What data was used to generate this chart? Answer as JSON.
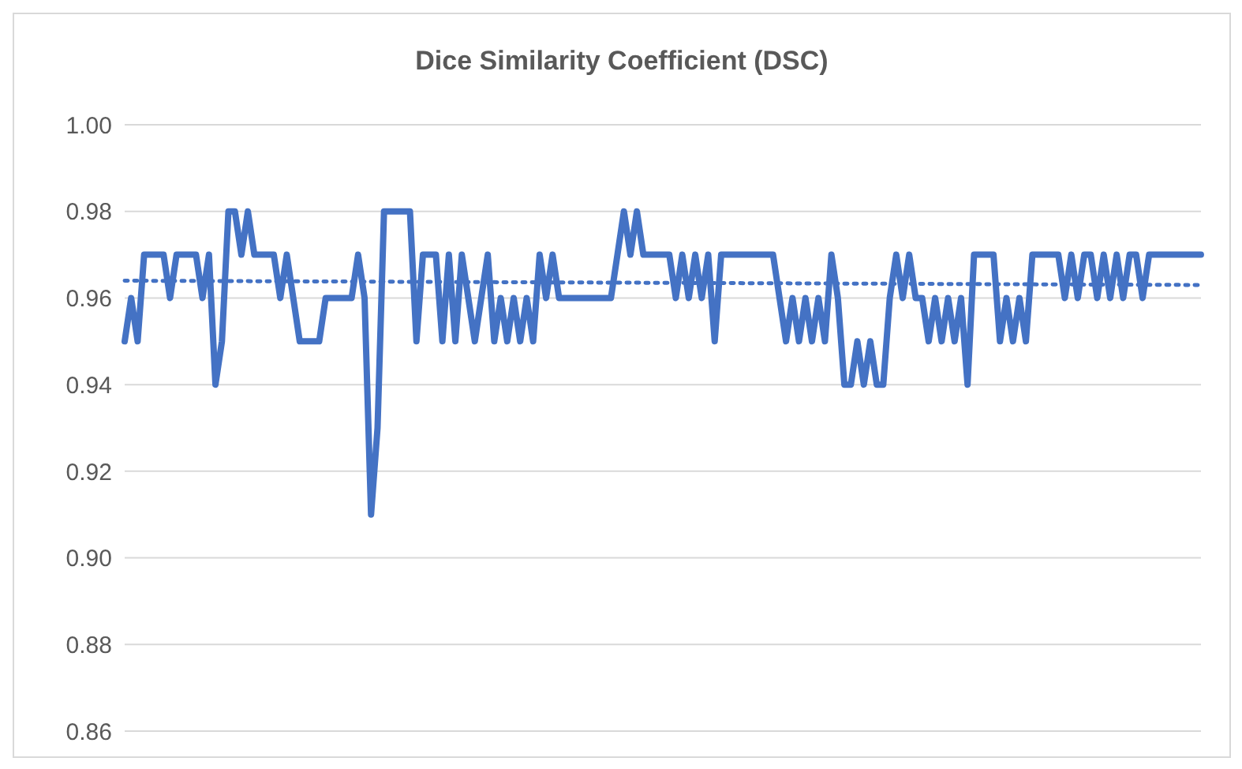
{
  "chart_data": {
    "type": "line",
    "title": "Dice Similarity Coefficient (DSC)",
    "categories": [
      null,
      null,
      null,
      null,
      null,
      null,
      null,
      null,
      null,
      null,
      null,
      null,
      null,
      null,
      null,
      null,
      null,
      null,
      null,
      null,
      null,
      null,
      null,
      null,
      null,
      null,
      null,
      null,
      null,
      null,
      null,
      null,
      null,
      null,
      null,
      null,
      null,
      null,
      null,
      null,
      null,
      null,
      null,
      null,
      null,
      null,
      null,
      null,
      null,
      null,
      null,
      null,
      null,
      null,
      null,
      null,
      null,
      null,
      null,
      null,
      null,
      null,
      null,
      null,
      null,
      null,
      null,
      null,
      null,
      null,
      null,
      null,
      null,
      null,
      null,
      null,
      null,
      null,
      null,
      null,
      null,
      null,
      null,
      null,
      null,
      null,
      null,
      null,
      null,
      null,
      null,
      null,
      null,
      null,
      null,
      null,
      null,
      null,
      null,
      null,
      null,
      null,
      null,
      null,
      null,
      null,
      null,
      null,
      null,
      null,
      null,
      null,
      null,
      null,
      null,
      null,
      null,
      null,
      null,
      null,
      null,
      null,
      null,
      null,
      null,
      null,
      null,
      null,
      null,
      null,
      null,
      null,
      null,
      null,
      null,
      null,
      null,
      null,
      null,
      null,
      null,
      null,
      null,
      null,
      null,
      null,
      null,
      null,
      null,
      null,
      null,
      null,
      null,
      null,
      null,
      null,
      null,
      null,
      null,
      null,
      null,
      null,
      null,
      null,
      null,
      null,
      null
    ],
    "series": [
      {
        "color": "#4472c4",
        "values": [
          0.95,
          0.96,
          0.95,
          0.97,
          0.97,
          0.97,
          0.97,
          0.96,
          0.97,
          0.97,
          0.97,
          0.97,
          0.96,
          0.97,
          0.94,
          0.95,
          0.98,
          0.98,
          0.97,
          0.98,
          0.97,
          0.97,
          0.97,
          0.97,
          0.96,
          0.97,
          0.96,
          0.95,
          0.95,
          0.95,
          0.95,
          0.96,
          0.96,
          0.96,
          0.96,
          0.96,
          0.97,
          0.96,
          0.91,
          0.93,
          0.98,
          0.98,
          0.98,
          0.98,
          0.98,
          0.95,
          0.97,
          0.97,
          0.97,
          0.95,
          0.97,
          0.95,
          0.97,
          0.96,
          0.95,
          0.96,
          0.97,
          0.95,
          0.96,
          0.95,
          0.96,
          0.95,
          0.96,
          0.95,
          0.97,
          0.96,
          0.97,
          0.96,
          0.96,
          0.96,
          0.96,
          0.96,
          0.96,
          0.96,
          0.96,
          0.96,
          0.97,
          0.98,
          0.97,
          0.98,
          0.97,
          0.97,
          0.97,
          0.97,
          0.97,
          0.96,
          0.97,
          0.96,
          0.97,
          0.96,
          0.97,
          0.95,
          0.97,
          0.97,
          0.97,
          0.97,
          0.97,
          0.97,
          0.97,
          0.97,
          0.97,
          0.96,
          0.95,
          0.96,
          0.95,
          0.96,
          0.95,
          0.96,
          0.95,
          0.97,
          0.96,
          0.94,
          0.94,
          0.95,
          0.94,
          0.95,
          0.94,
          0.94,
          0.96,
          0.97,
          0.96,
          0.97,
          0.96,
          0.96,
          0.95,
          0.96,
          0.95,
          0.96,
          0.95,
          0.96,
          0.94,
          0.97,
          0.97,
          0.97,
          0.97,
          0.95,
          0.96,
          0.95,
          0.96,
          0.95,
          0.97,
          0.97,
          0.97,
          0.97,
          0.97,
          0.96,
          0.97,
          0.96,
          0.97,
          0.97,
          0.96,
          0.97,
          0.96,
          0.97,
          0.96,
          0.97,
          0.97,
          0.96,
          0.97,
          0.97,
          0.97,
          0.97,
          0.97,
          0.97,
          0.97,
          0.97,
          0.97
        ]
      },
      {
        "color": "#4472c4",
        "line_style": "dotted",
        "values": [
          0.964,
          null,
          null,
          null,
          null,
          null,
          null,
          null,
          null,
          null,
          null,
          null,
          null,
          null,
          null,
          null,
          null,
          null,
          null,
          null,
          null,
          null,
          null,
          null,
          null,
          null,
          null,
          null,
          null,
          null,
          null,
          null,
          null,
          null,
          null,
          null,
          null,
          null,
          null,
          null,
          null,
          null,
          null,
          null,
          null,
          null,
          null,
          null,
          null,
          null,
          null,
          null,
          null,
          null,
          null,
          null,
          null,
          null,
          null,
          null,
          null,
          null,
          null,
          null,
          null,
          null,
          null,
          null,
          null,
          null,
          null,
          null,
          null,
          null,
          null,
          null,
          null,
          null,
          null,
          null,
          null,
          null,
          null,
          null,
          null,
          null,
          null,
          null,
          null,
          null,
          null,
          null,
          null,
          null,
          null,
          null,
          null,
          null,
          null,
          null,
          null,
          null,
          null,
          null,
          null,
          null,
          null,
          null,
          null,
          null,
          null,
          null,
          null,
          null,
          null,
          null,
          null,
          null,
          null,
          null,
          null,
          null,
          null,
          null,
          null,
          null,
          null,
          null,
          null,
          null,
          null,
          null,
          null,
          null,
          null,
          null,
          null,
          null,
          null,
          null,
          null,
          null,
          null,
          null,
          null,
          null,
          null,
          null,
          null,
          null,
          null,
          null,
          null,
          null,
          null,
          null,
          null,
          null,
          null,
          null,
          null,
          null,
          null,
          null,
          null,
          null,
          0.963
        ]
      }
    ],
    "ylim": [
      0.86,
      1.0
    ],
    "yticks": [
      0.86,
      0.88,
      {
        "value": 0.9,
        "label": "0.90"
      },
      0.92,
      0.94,
      0.96,
      0.98,
      {
        "value": 1.0,
        "label": "1.00"
      }
    ],
    "grid": "y",
    "marker": "none",
    "tick_labels": "y"
  }
}
